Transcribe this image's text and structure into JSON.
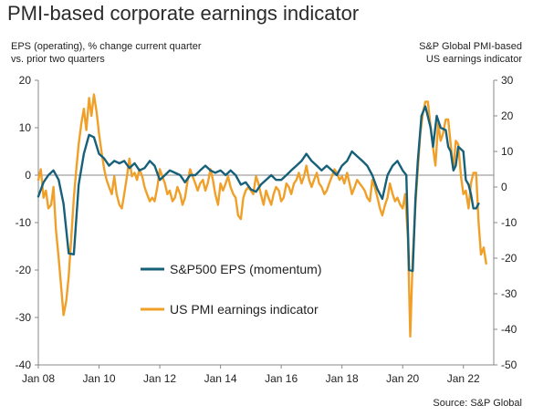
{
  "title": "PMI-based corporate earnings indicator",
  "source": "Source: S&P Global",
  "chart_data": {
    "type": "line",
    "left_axis_label": [
      "EPS (operating), % change current quarter",
      "vs. prior two quarters"
    ],
    "right_axis_label": [
      "S&P Global PMI-based",
      "US earnings indicator"
    ],
    "left_ylim": [
      -40,
      20
    ],
    "right_ylim": [
      -50,
      30
    ],
    "left_ticks": [
      20,
      10,
      0,
      -10,
      -20,
      -30,
      -40
    ],
    "right_ticks": [
      30,
      20,
      10,
      0,
      -10,
      -20,
      -30,
      -40,
      -50
    ],
    "x_tick_labels": [
      "Jan 08",
      "Jan 10",
      "Jan 12",
      "Jan 14",
      "Jan 16",
      "Jan 18",
      "Jan 20",
      "Jan 22"
    ],
    "x_tick_years": [
      2008,
      2010,
      2012,
      2014,
      2016,
      2018,
      2020,
      2022
    ],
    "xlim": [
      2008.0,
      2023.0
    ],
    "legend_placement": "bottom-center",
    "series": [
      {
        "name": "S&P500 EPS (momentum)",
        "axis": "left",
        "color": "#17607a",
        "points": [
          [
            2008.0,
            -4.5
          ],
          [
            2008.17,
            -1.5
          ],
          [
            2008.33,
            0.0
          ],
          [
            2008.5,
            1.0
          ],
          [
            2008.67,
            -1.0
          ],
          [
            2008.83,
            -6.0
          ],
          [
            2009.0,
            -16.5
          ],
          [
            2009.17,
            -16.7
          ],
          [
            2009.33,
            -2.0
          ],
          [
            2009.5,
            4.5
          ],
          [
            2009.67,
            8.5
          ],
          [
            2009.83,
            8.0
          ],
          [
            2010.0,
            4.5
          ],
          [
            2010.17,
            3.5
          ],
          [
            2010.33,
            2.0
          ],
          [
            2010.5,
            3.0
          ],
          [
            2010.67,
            2.5
          ],
          [
            2010.83,
            3.0
          ],
          [
            2011.0,
            1.5
          ],
          [
            2011.17,
            2.5
          ],
          [
            2011.33,
            1.0
          ],
          [
            2011.5,
            1.5
          ],
          [
            2011.67,
            3.0
          ],
          [
            2011.83,
            2.0
          ],
          [
            2012.0,
            -1.0
          ],
          [
            2012.17,
            0.0
          ],
          [
            2012.33,
            1.0
          ],
          [
            2012.5,
            0.5
          ],
          [
            2012.67,
            0.0
          ],
          [
            2012.83,
            -1.5
          ],
          [
            2013.0,
            0.0
          ],
          [
            2013.17,
            0.0
          ],
          [
            2013.33,
            1.0
          ],
          [
            2013.5,
            2.0
          ],
          [
            2013.67,
            1.0
          ],
          [
            2013.83,
            0.5
          ],
          [
            2014.0,
            1.0
          ],
          [
            2014.17,
            0.0
          ],
          [
            2014.33,
            1.0
          ],
          [
            2014.5,
            0.0
          ],
          [
            2014.67,
            -2.0
          ],
          [
            2014.83,
            -1.5
          ],
          [
            2015.0,
            -3.0
          ],
          [
            2015.17,
            -3.5
          ],
          [
            2015.33,
            -2.0
          ],
          [
            2015.5,
            -1.0
          ],
          [
            2015.67,
            0.0
          ],
          [
            2015.83,
            -1.0
          ],
          [
            2016.0,
            -1.0
          ],
          [
            2016.17,
            0.0
          ],
          [
            2016.33,
            1.0
          ],
          [
            2016.5,
            2.0
          ],
          [
            2016.67,
            3.0
          ],
          [
            2016.83,
            4.5
          ],
          [
            2017.0,
            3.0
          ],
          [
            2017.17,
            2.0
          ],
          [
            2017.33,
            1.0
          ],
          [
            2017.5,
            2.0
          ],
          [
            2017.67,
            1.0
          ],
          [
            2017.83,
            0.0
          ],
          [
            2018.0,
            2.0
          ],
          [
            2018.17,
            3.0
          ],
          [
            2018.33,
            5.0
          ],
          [
            2018.5,
            4.0
          ],
          [
            2018.67,
            3.0
          ],
          [
            2018.83,
            2.0
          ],
          [
            2019.0,
            0.0
          ],
          [
            2019.17,
            -3.0
          ],
          [
            2019.33,
            -5.0
          ],
          [
            2019.5,
            0.0
          ],
          [
            2019.67,
            2.0
          ],
          [
            2019.83,
            3.0
          ],
          [
            2020.0,
            1.0
          ],
          [
            2020.12,
            0.0
          ],
          [
            2020.21,
            -20.0
          ],
          [
            2020.33,
            -20.2
          ],
          [
            2020.42,
            -5.0
          ],
          [
            2020.5,
            3.0
          ],
          [
            2020.62,
            12.5
          ],
          [
            2020.75,
            14.5
          ],
          [
            2020.92,
            10.0
          ],
          [
            2021.0,
            6.0
          ],
          [
            2021.12,
            12.5
          ],
          [
            2021.25,
            10.0
          ],
          [
            2021.42,
            9.5
          ],
          [
            2021.5,
            6.0
          ],
          [
            2021.58,
            5.0
          ],
          [
            2021.67,
            1.0
          ],
          [
            2021.75,
            2.0
          ],
          [
            2021.83,
            6.0
          ],
          [
            2022.0,
            5.0
          ],
          [
            2022.08,
            -1.0
          ],
          [
            2022.17,
            -2.0
          ],
          [
            2022.25,
            -4.0
          ],
          [
            2022.33,
            -7.0
          ],
          [
            2022.42,
            -7.0
          ],
          [
            2022.5,
            -6.0
          ]
        ]
      },
      {
        "name": "US PMI earnings indicator",
        "axis": "right",
        "color": "#f0a028",
        "points": [
          [
            2008.0,
            2.0
          ],
          [
            2008.08,
            5.0
          ],
          [
            2008.17,
            -3.0
          ],
          [
            2008.25,
            -1.0
          ],
          [
            2008.33,
            -6.0
          ],
          [
            2008.42,
            -5.0
          ],
          [
            2008.5,
            0.0
          ],
          [
            2008.58,
            -12.0
          ],
          [
            2008.67,
            -20.0
          ],
          [
            2008.75,
            -28.0
          ],
          [
            2008.83,
            -36.0
          ],
          [
            2008.92,
            -32.0
          ],
          [
            2009.0,
            -25.0
          ],
          [
            2009.08,
            -15.0
          ],
          [
            2009.17,
            -3.0
          ],
          [
            2009.25,
            5.0
          ],
          [
            2009.33,
            12.0
          ],
          [
            2009.42,
            18.0
          ],
          [
            2009.5,
            22.0
          ],
          [
            2009.58,
            16.0
          ],
          [
            2009.67,
            25.0
          ],
          [
            2009.75,
            20.0
          ],
          [
            2009.83,
            26.0
          ],
          [
            2009.92,
            21.0
          ],
          [
            2010.0,
            15.0
          ],
          [
            2010.08,
            10.0
          ],
          [
            2010.17,
            5.0
          ],
          [
            2010.25,
            2.0
          ],
          [
            2010.33,
            0.0
          ],
          [
            2010.42,
            -2.0
          ],
          [
            2010.5,
            3.0
          ],
          [
            2010.58,
            -2.0
          ],
          [
            2010.67,
            -5.0
          ],
          [
            2010.75,
            -6.0
          ],
          [
            2010.83,
            -2.0
          ],
          [
            2010.92,
            3.0
          ],
          [
            2011.0,
            8.0
          ],
          [
            2011.08,
            3.0
          ],
          [
            2011.17,
            4.0
          ],
          [
            2011.25,
            2.0
          ],
          [
            2011.33,
            5.0
          ],
          [
            2011.42,
            3.0
          ],
          [
            2011.5,
            0.0
          ],
          [
            2011.58,
            -2.0
          ],
          [
            2011.67,
            -4.0
          ],
          [
            2011.75,
            -3.0
          ],
          [
            2011.83,
            -4.0
          ],
          [
            2011.92,
            0.0
          ],
          [
            2012.0,
            5.0
          ],
          [
            2012.08,
            3.0
          ],
          [
            2012.17,
            1.0
          ],
          [
            2012.25,
            -2.0
          ],
          [
            2012.33,
            -1.0
          ],
          [
            2012.42,
            -4.0
          ],
          [
            2012.5,
            -3.0
          ],
          [
            2012.58,
            0.0
          ],
          [
            2012.67,
            -2.0
          ],
          [
            2012.75,
            -5.0
          ],
          [
            2012.83,
            -3.0
          ],
          [
            2012.92,
            2.0
          ],
          [
            2013.0,
            5.0
          ],
          [
            2013.08,
            3.0
          ],
          [
            2013.17,
            1.0
          ],
          [
            2013.25,
            -1.0
          ],
          [
            2013.33,
            1.0
          ],
          [
            2013.42,
            2.0
          ],
          [
            2013.5,
            -1.0
          ],
          [
            2013.58,
            1.0
          ],
          [
            2013.67,
            5.0
          ],
          [
            2013.75,
            2.0
          ],
          [
            2013.83,
            -2.0
          ],
          [
            2013.92,
            -5.0
          ],
          [
            2014.0,
            1.0
          ],
          [
            2014.08,
            -1.0
          ],
          [
            2014.17,
            1.0
          ],
          [
            2014.25,
            3.0
          ],
          [
            2014.33,
            0.0
          ],
          [
            2014.42,
            -2.0
          ],
          [
            2014.5,
            -3.0
          ],
          [
            2014.58,
            -8.0
          ],
          [
            2014.67,
            -9.0
          ],
          [
            2014.75,
            -3.0
          ],
          [
            2014.83,
            -1.0
          ],
          [
            2014.92,
            0.0
          ],
          [
            2015.0,
            -1.0
          ],
          [
            2015.08,
            -2.0
          ],
          [
            2015.17,
            3.0
          ],
          [
            2015.25,
            1.0
          ],
          [
            2015.33,
            -2.0
          ],
          [
            2015.42,
            -5.0
          ],
          [
            2015.5,
            -1.0
          ],
          [
            2015.58,
            -3.0
          ],
          [
            2015.67,
            -5.0
          ],
          [
            2015.75,
            -2.0
          ],
          [
            2015.83,
            0.0
          ],
          [
            2015.92,
            -1.0
          ],
          [
            2016.0,
            -4.0
          ],
          [
            2016.08,
            -3.0
          ],
          [
            2016.17,
            1.0
          ],
          [
            2016.25,
            0.0
          ],
          [
            2016.33,
            -2.0
          ],
          [
            2016.42,
            1.0
          ],
          [
            2016.5,
            2.0
          ],
          [
            2016.58,
            4.0
          ],
          [
            2016.67,
            1.0
          ],
          [
            2016.75,
            3.0
          ],
          [
            2016.83,
            6.0
          ],
          [
            2016.92,
            2.0
          ],
          [
            2017.0,
            0.0
          ],
          [
            2017.08,
            2.0
          ],
          [
            2017.17,
            4.0
          ],
          [
            2017.25,
            1.0
          ],
          [
            2017.33,
            0.0
          ],
          [
            2017.42,
            -2.0
          ],
          [
            2017.5,
            -1.0
          ],
          [
            2017.58,
            1.0
          ],
          [
            2017.67,
            3.0
          ],
          [
            2017.75,
            5.0
          ],
          [
            2017.83,
            4.0
          ],
          [
            2017.92,
            2.0
          ],
          [
            2018.0,
            3.0
          ],
          [
            2018.08,
            1.0
          ],
          [
            2018.17,
            4.0
          ],
          [
            2018.25,
            1.0
          ],
          [
            2018.33,
            -2.0
          ],
          [
            2018.42,
            0.0
          ],
          [
            2018.5,
            2.0
          ],
          [
            2018.58,
            1.0
          ],
          [
            2018.67,
            0.0
          ],
          [
            2018.75,
            -1.0
          ],
          [
            2018.83,
            -3.0
          ],
          [
            2018.92,
            -4.0
          ],
          [
            2019.0,
            2.0
          ],
          [
            2019.08,
            0.0
          ],
          [
            2019.17,
            -3.0
          ],
          [
            2019.25,
            -6.0
          ],
          [
            2019.33,
            -8.0
          ],
          [
            2019.42,
            -5.0
          ],
          [
            2019.5,
            -3.0
          ],
          [
            2019.58,
            1.0
          ],
          [
            2019.67,
            -2.0
          ],
          [
            2019.75,
            -4.0
          ],
          [
            2019.83,
            -3.0
          ],
          [
            2019.92,
            -5.0
          ],
          [
            2020.0,
            -6.0
          ],
          [
            2020.08,
            -2.0
          ],
          [
            2020.17,
            -14.0
          ],
          [
            2020.25,
            -42.0
          ],
          [
            2020.33,
            -20.0
          ],
          [
            2020.42,
            -5.0
          ],
          [
            2020.5,
            5.0
          ],
          [
            2020.58,
            15.0
          ],
          [
            2020.67,
            21.0
          ],
          [
            2020.75,
            24.0
          ],
          [
            2020.83,
            24.0
          ],
          [
            2020.92,
            17.0
          ],
          [
            2021.0,
            11.0
          ],
          [
            2021.08,
            6.0
          ],
          [
            2021.17,
            18.0
          ],
          [
            2021.25,
            13.0
          ],
          [
            2021.33,
            15.0
          ],
          [
            2021.42,
            19.0
          ],
          [
            2021.5,
            19.0
          ],
          [
            2021.58,
            12.0
          ],
          [
            2021.67,
            5.0
          ],
          [
            2021.75,
            13.0
          ],
          [
            2021.83,
            12.0
          ],
          [
            2021.92,
            3.0
          ],
          [
            2022.0,
            -2.0
          ],
          [
            2022.08,
            -1.0
          ],
          [
            2022.17,
            -6.0
          ],
          [
            2022.25,
            1.0
          ],
          [
            2022.33,
            4.0
          ],
          [
            2022.42,
            4.0
          ],
          [
            2022.5,
            -10.0
          ],
          [
            2022.58,
            -19.0
          ],
          [
            2022.67,
            -17.0
          ],
          [
            2022.75,
            -21.5
          ]
        ]
      }
    ]
  }
}
